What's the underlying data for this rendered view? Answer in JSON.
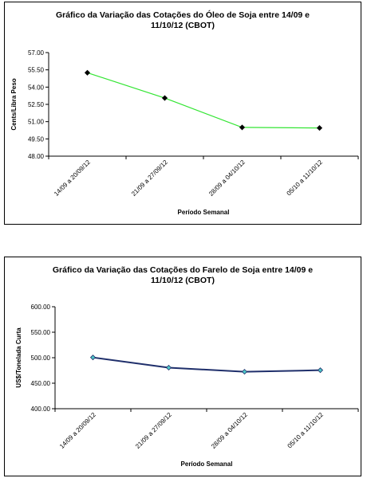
{
  "chart_data": [
    {
      "type": "line",
      "title": [
        "Gráfico da Variação das Cotações do Óleo de Soja entre 14/09 e",
        "11/10/12 (CBOT)"
      ],
      "xlabel": "Período Semanal",
      "ylabel": "Cents/Libra Peso",
      "categories": [
        "14/09 a 20/09/12",
        "21/09 a 27/09/12",
        "28/09 a 04/10/12",
        "05/10 a 11/10/12"
      ],
      "series": [
        {
          "values": [
            55.25,
            53.05,
            50.5,
            50.45
          ]
        }
      ],
      "ylim": [
        48.0,
        57.0
      ],
      "yticks": [
        "57.00",
        "55.50",
        "54.00",
        "52.50",
        "51.00",
        "49.50",
        "48.00"
      ],
      "grid": false,
      "line_color": "#33e533",
      "marker_color": "#000000"
    },
    {
      "type": "line",
      "title": [
        "Gráfico da Variação das Cotações do Farelo de Soja entre 14/09 e",
        "11/10/12 (CBOT)"
      ],
      "xlabel": "Período Semanal",
      "ylabel": "US$/Tonelada Curta",
      "categories": [
        "14/09 a 20/09/12",
        "21/09 a 27/09/12",
        "28/09 a 04/10/12",
        "05/10 a 11/10/12"
      ],
      "series": [
        {
          "values": [
            500.5,
            480.5,
            472.5,
            475.5
          ]
        }
      ],
      "ylim": [
        400.0,
        600.0
      ],
      "yticks": [
        "600.00",
        "550.00",
        "500.00",
        "450.00",
        "400.00"
      ],
      "grid": false,
      "line_color": "#1f2f6b",
      "marker_color": "#4fc7c7"
    }
  ]
}
